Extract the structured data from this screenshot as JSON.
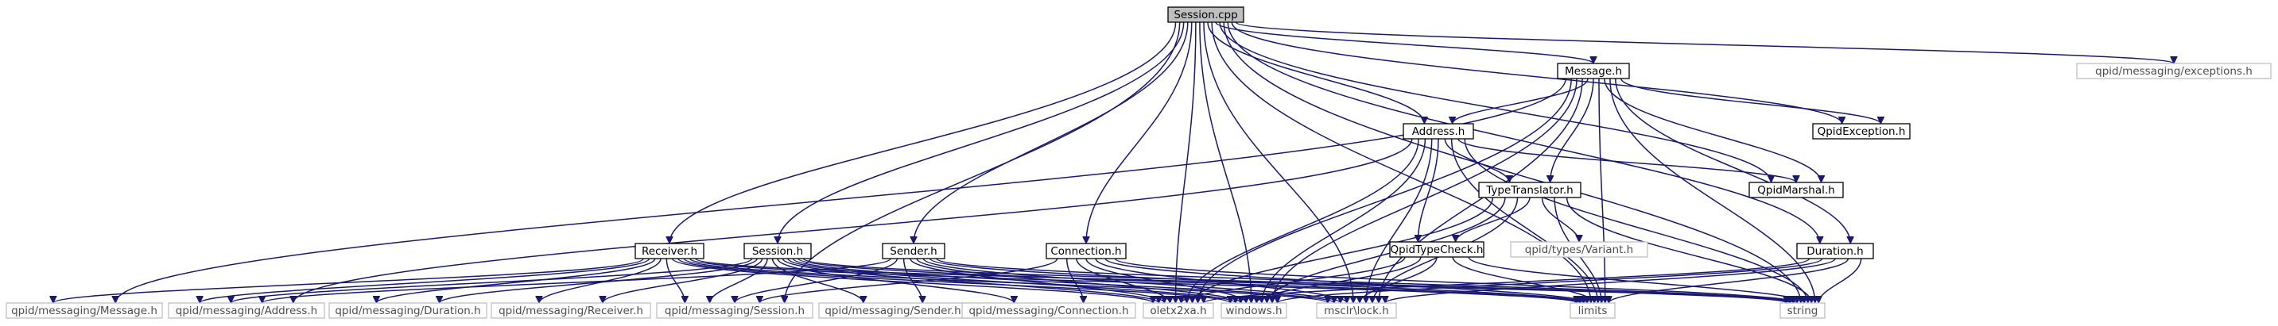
{
  "diagram": {
    "colors": {
      "edge": "#191970",
      "box_border": "#000000",
      "external_border": "#bfbfbf",
      "root_fill": "#bfbfbf",
      "box_fill": "#ffffff",
      "text": "#000000",
      "external_text": "#4d4d4d"
    },
    "nodes": [
      {
        "id": "session_cpp",
        "label": "Session.cpp",
        "kind": "root"
      },
      {
        "id": "message_h",
        "label": "Message.h",
        "kind": "local"
      },
      {
        "id": "qpid_exceptions_h",
        "label": "qpid/messaging/exceptions.h",
        "kind": "external"
      },
      {
        "id": "address_h",
        "label": "Address.h",
        "kind": "local"
      },
      {
        "id": "qpid_exception_h",
        "label": "QpidException.h",
        "kind": "local"
      },
      {
        "id": "type_translator_h",
        "label": "TypeTranslator.h",
        "kind": "local"
      },
      {
        "id": "qpid_marshal_h",
        "label": "QpidMarshal.h",
        "kind": "local"
      },
      {
        "id": "qpid_type_check_h",
        "label": "QpidTypeCheck.h",
        "kind": "local"
      },
      {
        "id": "qpid_types_variant_h",
        "label": "qpid/types/Variant.h",
        "kind": "external"
      },
      {
        "id": "receiver_h",
        "label": "Receiver.h",
        "kind": "local"
      },
      {
        "id": "session_h",
        "label": "Session.h",
        "kind": "local"
      },
      {
        "id": "sender_h",
        "label": "Sender.h",
        "kind": "local"
      },
      {
        "id": "connection_h",
        "label": "Connection.h",
        "kind": "local"
      },
      {
        "id": "duration_h",
        "label": "Duration.h",
        "kind": "local"
      },
      {
        "id": "qm_message_h",
        "label": "qpid/messaging/Message.h",
        "kind": "external"
      },
      {
        "id": "qm_address_h",
        "label": "qpid/messaging/Address.h",
        "kind": "external"
      },
      {
        "id": "qm_duration_h",
        "label": "qpid/messaging/Duration.h",
        "kind": "external"
      },
      {
        "id": "qm_receiver_h",
        "label": "qpid/messaging/Receiver.h",
        "kind": "external"
      },
      {
        "id": "qm_session_h",
        "label": "qpid/messaging/Session.h",
        "kind": "external"
      },
      {
        "id": "qm_sender_h",
        "label": "qpid/messaging/Sender.h",
        "kind": "external"
      },
      {
        "id": "qm_connection_h",
        "label": "qpid/messaging/Connection.h",
        "kind": "external"
      },
      {
        "id": "oletx2xa_h",
        "label": "oletx2xa.h",
        "kind": "external"
      },
      {
        "id": "windows_h",
        "label": "windows.h",
        "kind": "external"
      },
      {
        "id": "msclr_lock_h",
        "label": "msclr\\lock.h",
        "kind": "external"
      },
      {
        "id": "limits",
        "label": "limits",
        "kind": "external"
      },
      {
        "id": "string",
        "label": "string",
        "kind": "external"
      }
    ],
    "edges": [
      [
        "session_cpp",
        "message_h"
      ],
      [
        "session_cpp",
        "qpid_exceptions_h"
      ],
      [
        "session_cpp",
        "address_h"
      ],
      [
        "session_cpp",
        "qpid_exception_h"
      ],
      [
        "session_cpp",
        "qpid_marshal_h"
      ],
      [
        "session_cpp",
        "receiver_h"
      ],
      [
        "session_cpp",
        "session_h"
      ],
      [
        "session_cpp",
        "sender_h"
      ],
      [
        "session_cpp",
        "connection_h"
      ],
      [
        "session_cpp",
        "duration_h"
      ],
      [
        "session_cpp",
        "qm_session_h"
      ],
      [
        "session_cpp",
        "oletx2xa_h"
      ],
      [
        "session_cpp",
        "windows_h"
      ],
      [
        "session_cpp",
        "msclr_lock_h"
      ],
      [
        "session_cpp",
        "limits"
      ],
      [
        "session_cpp",
        "string"
      ],
      [
        "message_h",
        "address_h"
      ],
      [
        "message_h",
        "qpid_exception_h"
      ],
      [
        "message_h",
        "type_translator_h"
      ],
      [
        "message_h",
        "qpid_marshal_h"
      ],
      [
        "message_h",
        "duration_h"
      ],
      [
        "message_h",
        "qm_message_h"
      ],
      [
        "message_h",
        "oletx2xa_h"
      ],
      [
        "message_h",
        "windows_h"
      ],
      [
        "message_h",
        "msclr_lock_h"
      ],
      [
        "message_h",
        "limits"
      ],
      [
        "message_h",
        "string"
      ],
      [
        "address_h",
        "type_translator_h"
      ],
      [
        "address_h",
        "qpid_marshal_h"
      ],
      [
        "address_h",
        "qpid_type_check_h"
      ],
      [
        "address_h",
        "qm_address_h"
      ],
      [
        "address_h",
        "oletx2xa_h"
      ],
      [
        "address_h",
        "windows_h"
      ],
      [
        "address_h",
        "msclr_lock_h"
      ],
      [
        "address_h",
        "limits"
      ],
      [
        "address_h",
        "string"
      ],
      [
        "type_translator_h",
        "qpid_type_check_h"
      ],
      [
        "type_translator_h",
        "qpid_types_variant_h"
      ],
      [
        "type_translator_h",
        "oletx2xa_h"
      ],
      [
        "type_translator_h",
        "windows_h"
      ],
      [
        "type_translator_h",
        "msclr_lock_h"
      ],
      [
        "type_translator_h",
        "limits"
      ],
      [
        "type_translator_h",
        "string"
      ],
      [
        "qpid_type_check_h",
        "oletx2xa_h"
      ],
      [
        "qpid_type_check_h",
        "windows_h"
      ],
      [
        "qpid_type_check_h",
        "msclr_lock_h"
      ],
      [
        "qpid_type_check_h",
        "limits"
      ],
      [
        "qpid_type_check_h",
        "string"
      ],
      [
        "receiver_h",
        "qm_message_h"
      ],
      [
        "receiver_h",
        "qm_address_h"
      ],
      [
        "receiver_h",
        "qm_duration_h"
      ],
      [
        "receiver_h",
        "qm_receiver_h"
      ],
      [
        "receiver_h",
        "qm_session_h"
      ],
      [
        "receiver_h",
        "oletx2xa_h"
      ],
      [
        "receiver_h",
        "windows_h"
      ],
      [
        "receiver_h",
        "msclr_lock_h"
      ],
      [
        "receiver_h",
        "limits"
      ],
      [
        "receiver_h",
        "string"
      ],
      [
        "session_h",
        "qm_address_h"
      ],
      [
        "session_h",
        "qm_duration_h"
      ],
      [
        "session_h",
        "qm_receiver_h"
      ],
      [
        "session_h",
        "qm_session_h"
      ],
      [
        "session_h",
        "qm_sender_h"
      ],
      [
        "session_h",
        "qm_connection_h"
      ],
      [
        "session_h",
        "oletx2xa_h"
      ],
      [
        "session_h",
        "windows_h"
      ],
      [
        "session_h",
        "msclr_lock_h"
      ],
      [
        "session_h",
        "limits"
      ],
      [
        "session_h",
        "string"
      ],
      [
        "sender_h",
        "qm_address_h"
      ],
      [
        "sender_h",
        "qm_session_h"
      ],
      [
        "sender_h",
        "qm_sender_h"
      ],
      [
        "sender_h",
        "oletx2xa_h"
      ],
      [
        "sender_h",
        "windows_h"
      ],
      [
        "sender_h",
        "msclr_lock_h"
      ],
      [
        "sender_h",
        "limits"
      ],
      [
        "sender_h",
        "string"
      ],
      [
        "connection_h",
        "qm_session_h"
      ],
      [
        "connection_h",
        "qm_connection_h"
      ],
      [
        "connection_h",
        "oletx2xa_h"
      ],
      [
        "connection_h",
        "windows_h"
      ],
      [
        "connection_h",
        "msclr_lock_h"
      ],
      [
        "connection_h",
        "limits"
      ],
      [
        "connection_h",
        "string"
      ],
      [
        "duration_h",
        "oletx2xa_h"
      ],
      [
        "duration_h",
        "windows_h"
      ],
      [
        "duration_h",
        "msclr_lock_h"
      ],
      [
        "duration_h",
        "limits"
      ],
      [
        "duration_h",
        "string"
      ]
    ]
  }
}
